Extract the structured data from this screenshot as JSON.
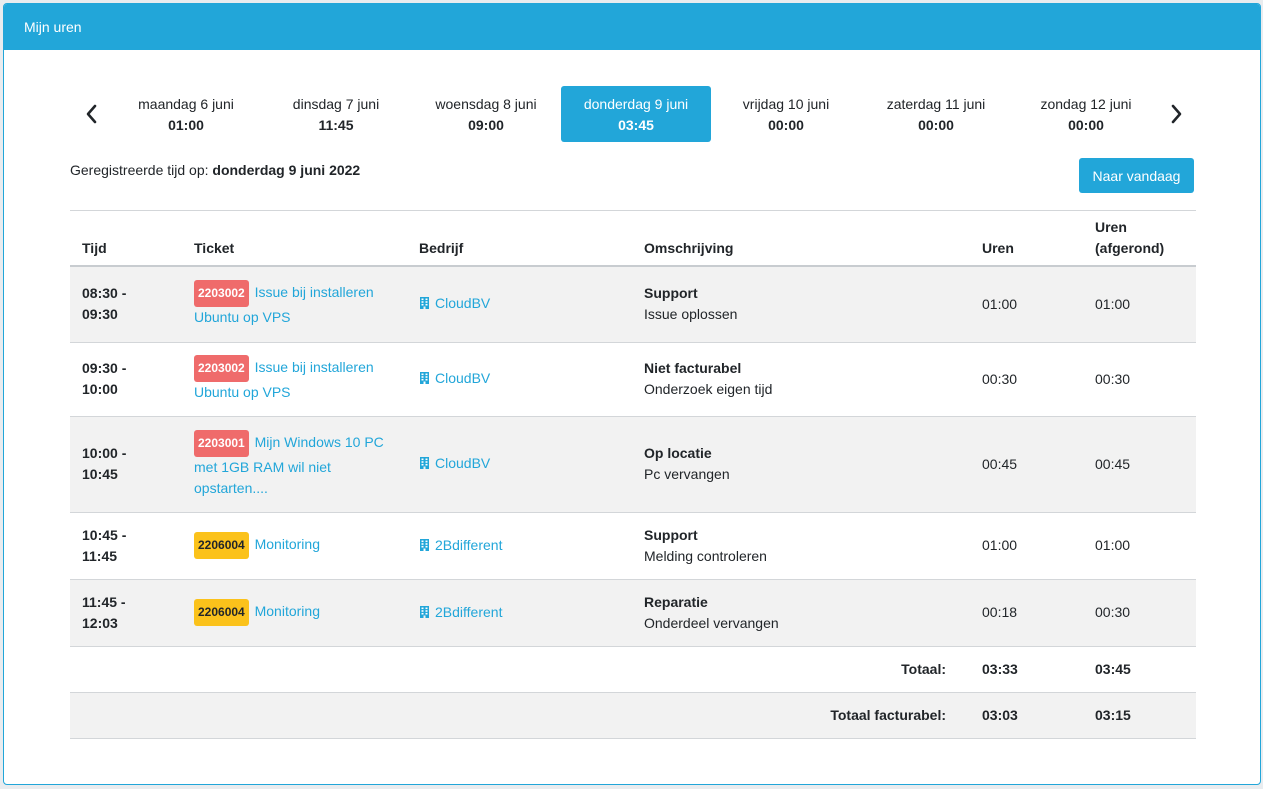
{
  "panel": {
    "title": "Mijn uren"
  },
  "days": [
    {
      "name": "maandag 6 juni",
      "time": "01:00",
      "active": false
    },
    {
      "name": "dinsdag 7 juni",
      "time": "11:45",
      "active": false
    },
    {
      "name": "woensdag 8 juni",
      "time": "09:00",
      "active": false
    },
    {
      "name": "donderdag 9 juni",
      "time": "03:45",
      "active": true
    },
    {
      "name": "vrijdag 10 juni",
      "time": "00:00",
      "active": false
    },
    {
      "name": "zaterdag 11 juni",
      "time": "00:00",
      "active": false
    },
    {
      "name": "zondag 12 juni",
      "time": "00:00",
      "active": false
    }
  ],
  "registered": {
    "prefix": "Geregistreerde tijd op: ",
    "date": "donderdag 9 juni 2022"
  },
  "today_button": "Naar vandaag",
  "table": {
    "headers": {
      "time": "Tijd",
      "ticket": "Ticket",
      "company": "Bedrijf",
      "description": "Omschrijving",
      "hours": "Uren",
      "rounded_line1": "Uren",
      "rounded_line2": "(afgerond)"
    },
    "rows": [
      {
        "time_from": "08:30 -",
        "time_to": "09:30",
        "ticket_no": "2203002",
        "ticket_color": "red",
        "ticket_title": "Issue bij installeren Ubuntu op VPS",
        "company": "CloudBV",
        "desc_title": "Support",
        "desc_sub": "Issue oplossen",
        "hours": "01:00",
        "rounded": "01:00"
      },
      {
        "time_from": "09:30 -",
        "time_to": "10:00",
        "ticket_no": "2203002",
        "ticket_color": "red",
        "ticket_title": "Issue bij installeren Ubuntu op VPS",
        "company": "CloudBV",
        "desc_title": "Niet facturabel",
        "desc_sub": "Onderzoek eigen tijd",
        "hours": "00:30",
        "rounded": "00:30"
      },
      {
        "time_from": "10:00 -",
        "time_to": "10:45",
        "ticket_no": "2203001",
        "ticket_color": "red",
        "ticket_title": "Mijn Windows 10 PC met 1GB RAM wil niet opstarten....",
        "company": "CloudBV",
        "desc_title": "Op locatie",
        "desc_sub": "Pc vervangen",
        "hours": "00:45",
        "rounded": "00:45"
      },
      {
        "time_from": "10:45 -",
        "time_to": "11:45",
        "ticket_no": "2206004",
        "ticket_color": "yellow",
        "ticket_title": "Monitoring",
        "company": "2Bdifferent",
        "desc_title": "Support",
        "desc_sub": "Melding controleren",
        "hours": "01:00",
        "rounded": "01:00"
      },
      {
        "time_from": "11:45 -",
        "time_to": "12:03",
        "ticket_no": "2206004",
        "ticket_color": "yellow",
        "ticket_title": "Monitoring",
        "company": "2Bdifferent",
        "desc_title": "Reparatie",
        "desc_sub": "Onderdeel vervangen",
        "hours": "00:18",
        "rounded": "00:30"
      }
    ],
    "totals": [
      {
        "label": "Totaal:",
        "hours": "03:33",
        "rounded": "03:45"
      },
      {
        "label": "Totaal facturabel:",
        "hours": "03:03",
        "rounded": "03:15"
      }
    ]
  },
  "colors": {
    "accent": "#22a6d9",
    "badge_red": "#ef6b6b",
    "badge_yellow": "#fbc21b"
  },
  "icons": {
    "prev": "chevron-left-icon",
    "next": "chevron-right-icon",
    "company": "building-icon"
  }
}
